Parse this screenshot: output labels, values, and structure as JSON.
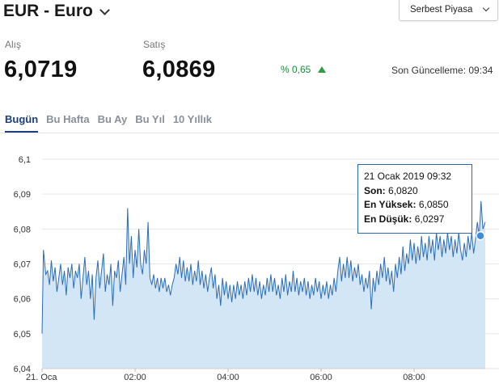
{
  "header": {
    "title": "EUR - Euro",
    "market_select": "Serbest Piyasa"
  },
  "rates": {
    "buy_label": "Alış",
    "buy_value": "6,0719",
    "sell_label": "Satış",
    "sell_value": "6,0869",
    "change": "% 0,65",
    "updated": "Son Güncelleme: 09:34"
  },
  "tabs": [
    "Bugün",
    "Bu Hafta",
    "Bu Ay",
    "Bu Yıl",
    "10 Yıllık"
  ],
  "active_tab": 0,
  "tooltip": {
    "date": "21 Ocak 2019 09:32",
    "last_label": "Son:",
    "last_value": "6,0820",
    "high_label": "En Yüksek:",
    "high_value": "6,0850",
    "low_label": "En Düşük:",
    "low_value": "6,0297"
  },
  "colors": {
    "accent": "#1c3f7a",
    "line": "#2b6cb8",
    "area": "#d3e6f6",
    "up": "#2e9e45"
  },
  "chart_data": {
    "type": "area",
    "y_ticks": [
      "6,1",
      "6,09",
      "6,08",
      "6,07",
      "6,06",
      "6,05",
      "6,04"
    ],
    "x_ticks": [
      "21. Oca",
      "02:00",
      "04:00",
      "06:00",
      "08:00"
    ],
    "x_range_hours": [
      0.0,
      9.53
    ],
    "ylim": [
      6.04,
      6.1
    ],
    "grid": true,
    "legend": "none",
    "marker_point": [
      9.53,
      6.082
    ],
    "points": [
      [
        0.0,
        6.05
      ],
      [
        0.03,
        6.074
      ],
      [
        0.08,
        6.067
      ],
      [
        0.12,
        6.068
      ],
      [
        0.16,
        6.064
      ],
      [
        0.2,
        6.071
      ],
      [
        0.24,
        6.065
      ],
      [
        0.28,
        6.069
      ],
      [
        0.32,
        6.062
      ],
      [
        0.36,
        6.066
      ],
      [
        0.4,
        6.07
      ],
      [
        0.44,
        6.064
      ],
      [
        0.48,
        6.068
      ],
      [
        0.52,
        6.061
      ],
      [
        0.56,
        6.069
      ],
      [
        0.6,
        6.066
      ],
      [
        0.64,
        6.07
      ],
      [
        0.68,
        6.063
      ],
      [
        0.72,
        6.068
      ],
      [
        0.76,
        6.066
      ],
      [
        0.8,
        6.07
      ],
      [
        0.84,
        6.06
      ],
      [
        0.88,
        6.066
      ],
      [
        0.92,
        6.072
      ],
      [
        0.96,
        6.064
      ],
      [
        1.0,
        6.068
      ],
      [
        1.04,
        6.06
      ],
      [
        1.08,
        6.067
      ],
      [
        1.12,
        6.054
      ],
      [
        1.16,
        6.066
      ],
      [
        1.2,
        6.071
      ],
      [
        1.24,
        6.063
      ],
      [
        1.28,
        6.068
      ],
      [
        1.32,
        6.073
      ],
      [
        1.36,
        6.062
      ],
      [
        1.4,
        6.067
      ],
      [
        1.44,
        6.064
      ],
      [
        1.48,
        6.07
      ],
      [
        1.52,
        6.058
      ],
      [
        1.56,
        6.068
      ],
      [
        1.6,
        6.066
      ],
      [
        1.64,
        6.071
      ],
      [
        1.68,
        6.062
      ],
      [
        1.72,
        6.067
      ],
      [
        1.76,
        6.072
      ],
      [
        1.8,
        6.064
      ],
      [
        1.84,
        6.086
      ],
      [
        1.88,
        6.07
      ],
      [
        1.92,
        6.078
      ],
      [
        1.96,
        6.066
      ],
      [
        2.0,
        6.074
      ],
      [
        2.04,
        6.069
      ],
      [
        2.08,
        6.08
      ],
      [
        2.12,
        6.07
      ],
      [
        2.16,
        6.067
      ],
      [
        2.2,
        6.074
      ],
      [
        2.24,
        6.07
      ],
      [
        2.28,
        6.082
      ],
      [
        2.32,
        6.066
      ],
      [
        2.36,
        6.064
      ],
      [
        2.4,
        6.067
      ],
      [
        2.44,
        6.063
      ],
      [
        2.48,
        6.066
      ],
      [
        2.52,
        6.062
      ],
      [
        2.56,
        6.066
      ],
      [
        2.6,
        6.063
      ],
      [
        2.64,
        6.066
      ],
      [
        2.68,
        6.062
      ],
      [
        2.72,
        6.064
      ],
      [
        2.76,
        6.061
      ],
      [
        2.8,
        6.064
      ],
      [
        2.84,
        6.066
      ],
      [
        2.88,
        6.07
      ],
      [
        2.92,
        6.067
      ],
      [
        2.96,
        6.072
      ],
      [
        3.0,
        6.066
      ],
      [
        3.04,
        6.071
      ],
      [
        3.08,
        6.065
      ],
      [
        3.12,
        6.069
      ],
      [
        3.16,
        6.065
      ],
      [
        3.2,
        6.07
      ],
      [
        3.24,
        6.064
      ],
      [
        3.28,
        6.068
      ],
      [
        3.32,
        6.065
      ],
      [
        3.36,
        6.071
      ],
      [
        3.4,
        6.064
      ],
      [
        3.44,
        6.068
      ],
      [
        3.48,
        6.063
      ],
      [
        3.52,
        6.067
      ],
      [
        3.56,
        6.062
      ],
      [
        3.6,
        6.066
      ],
      [
        3.64,
        6.069
      ],
      [
        3.68,
        6.063
      ],
      [
        3.72,
        6.067
      ],
      [
        3.76,
        6.06
      ],
      [
        3.8,
        6.064
      ],
      [
        3.84,
        6.058
      ],
      [
        3.88,
        6.066
      ],
      [
        3.92,
        6.061
      ],
      [
        3.96,
        6.065
      ],
      [
        4.0,
        6.06
      ],
      [
        4.04,
        6.064
      ],
      [
        4.08,
        6.059
      ],
      [
        4.12,
        6.064
      ],
      [
        4.16,
        6.06
      ],
      [
        4.2,
        6.065
      ],
      [
        4.24,
        6.061
      ],
      [
        4.28,
        6.064
      ],
      [
        4.32,
        6.06
      ],
      [
        4.36,
        6.065
      ],
      [
        4.4,
        6.061
      ],
      [
        4.44,
        6.066
      ],
      [
        4.48,
        6.062
      ],
      [
        4.52,
        6.067
      ],
      [
        4.56,
        6.062
      ],
      [
        4.6,
        6.066
      ],
      [
        4.64,
        6.061
      ],
      [
        4.68,
        6.065
      ],
      [
        4.72,
        6.06
      ],
      [
        4.76,
        6.064
      ],
      [
        4.8,
        6.061
      ],
      [
        4.84,
        6.066
      ],
      [
        4.88,
        6.062
      ],
      [
        4.92,
        6.067
      ],
      [
        4.96,
        6.062
      ],
      [
        5.0,
        6.066
      ],
      [
        5.04,
        6.061
      ],
      [
        5.08,
        6.064
      ],
      [
        5.12,
        6.06
      ],
      [
        5.16,
        6.066
      ],
      [
        5.2,
        6.062
      ],
      [
        5.24,
        6.067
      ],
      [
        5.28,
        6.061
      ],
      [
        5.32,
        6.065
      ],
      [
        5.36,
        6.062
      ],
      [
        5.4,
        6.068
      ],
      [
        5.44,
        6.062
      ],
      [
        5.48,
        6.066
      ],
      [
        5.52,
        6.061
      ],
      [
        5.56,
        6.065
      ],
      [
        5.6,
        6.062
      ],
      [
        5.64,
        6.066
      ],
      [
        5.68,
        6.061
      ],
      [
        5.72,
        6.065
      ],
      [
        5.76,
        6.06
      ],
      [
        5.8,
        6.064
      ],
      [
        5.84,
        6.061
      ],
      [
        5.88,
        6.066
      ],
      [
        5.92,
        6.062
      ],
      [
        5.96,
        6.065
      ],
      [
        6.0,
        6.06
      ],
      [
        6.04,
        6.064
      ],
      [
        6.08,
        6.061
      ],
      [
        6.12,
        6.065
      ],
      [
        6.16,
        6.06
      ],
      [
        6.2,
        6.064
      ],
      [
        6.24,
        6.061
      ],
      [
        6.28,
        6.066
      ],
      [
        6.32,
        6.062
      ],
      [
        6.36,
        6.068
      ],
      [
        6.4,
        6.072
      ],
      [
        6.44,
        6.065
      ],
      [
        6.48,
        6.07
      ],
      [
        6.52,
        6.066
      ],
      [
        6.56,
        6.072
      ],
      [
        6.6,
        6.066
      ],
      [
        6.64,
        6.071
      ],
      [
        6.68,
        6.065
      ],
      [
        6.72,
        6.069
      ],
      [
        6.76,
        6.066
      ],
      [
        6.8,
        6.07
      ],
      [
        6.84,
        6.064
      ],
      [
        6.88,
        6.067
      ],
      [
        6.92,
        6.062
      ],
      [
        6.96,
        6.066
      ],
      [
        7.0,
        6.063
      ],
      [
        7.04,
        6.068
      ],
      [
        7.08,
        6.057
      ],
      [
        7.12,
        6.066
      ],
      [
        7.16,
        6.062
      ],
      [
        7.2,
        6.068
      ],
      [
        7.24,
        6.064
      ],
      [
        7.28,
        6.07
      ],
      [
        7.32,
        6.066
      ],
      [
        7.36,
        6.072
      ],
      [
        7.4,
        6.065
      ],
      [
        7.44,
        6.069
      ],
      [
        7.48,
        6.064
      ],
      [
        7.52,
        6.068
      ],
      [
        7.56,
        6.062
      ],
      [
        7.6,
        6.07
      ],
      [
        7.64,
        6.066
      ],
      [
        7.68,
        6.072
      ],
      [
        7.72,
        6.067
      ],
      [
        7.76,
        6.075
      ],
      [
        7.8,
        6.068
      ],
      [
        7.84,
        6.073
      ],
      [
        7.88,
        6.07
      ],
      [
        7.92,
        6.077
      ],
      [
        7.96,
        6.071
      ],
      [
        8.0,
        6.076
      ],
      [
        8.04,
        6.07
      ],
      [
        8.08,
        6.075
      ],
      [
        8.12,
        6.071
      ],
      [
        8.16,
        6.078
      ],
      [
        8.2,
        6.072
      ],
      [
        8.24,
        6.076
      ],
      [
        8.28,
        6.071
      ],
      [
        8.32,
        6.078
      ],
      [
        8.36,
        6.073
      ],
      [
        8.4,
        6.077
      ],
      [
        8.44,
        6.071
      ],
      [
        8.48,
        6.079
      ],
      [
        8.52,
        6.074
      ],
      [
        8.56,
        6.078
      ],
      [
        8.6,
        6.072
      ],
      [
        8.64,
        6.077
      ],
      [
        8.68,
        6.073
      ],
      [
        8.72,
        6.079
      ],
      [
        8.76,
        6.074
      ],
      [
        8.8,
        6.078
      ],
      [
        8.84,
        6.072
      ],
      [
        8.88,
        6.077
      ],
      [
        8.92,
        6.073
      ],
      [
        8.96,
        6.079
      ],
      [
        9.0,
        6.074
      ],
      [
        9.04,
        6.071
      ],
      [
        9.08,
        6.076
      ],
      [
        9.12,
        6.072
      ],
      [
        9.16,
        6.078
      ],
      [
        9.2,
        6.074
      ],
      [
        9.24,
        6.079
      ],
      [
        9.28,
        6.073
      ],
      [
        9.32,
        6.077
      ],
      [
        9.36,
        6.082
      ],
      [
        9.4,
        6.078
      ],
      [
        9.44,
        6.088
      ],
      [
        9.48,
        6.08
      ],
      [
        9.53,
        6.082
      ]
    ]
  }
}
